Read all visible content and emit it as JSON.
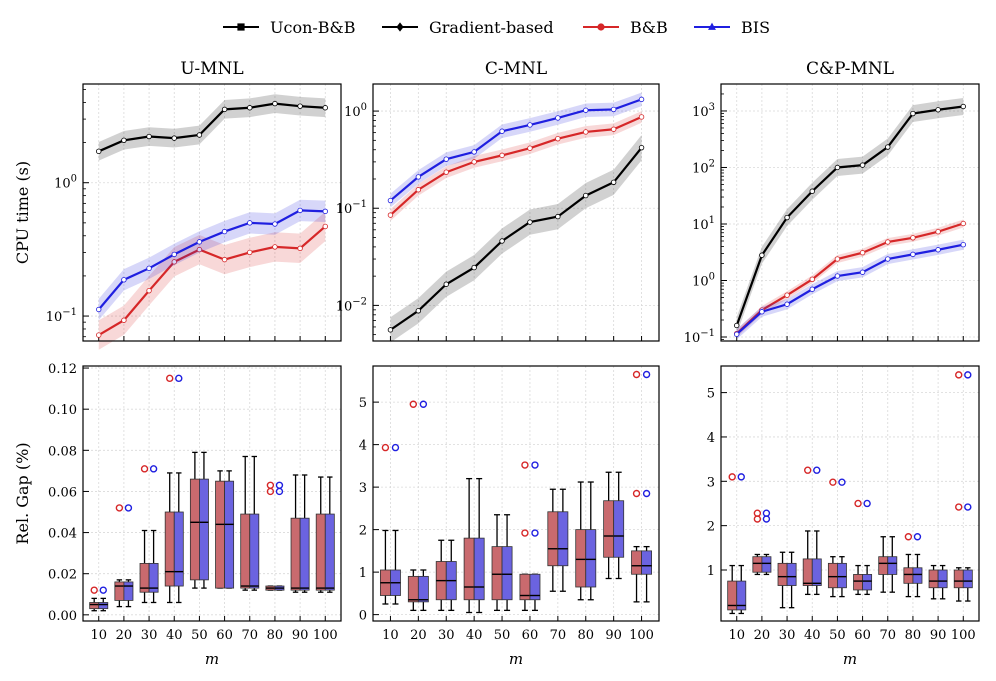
{
  "legend": {
    "position": "top-center",
    "items": [
      {
        "label": "Ucon-B&B",
        "color": "#000000",
        "marker": "square"
      },
      {
        "label": "Gradient-based",
        "color": "#000000",
        "marker": "diamond"
      },
      {
        "label": "B&B",
        "color": "#d62728",
        "marker": "circle"
      },
      {
        "label": "BIS",
        "color": "#1f1fe0",
        "marker": "triangle"
      }
    ]
  },
  "colors": {
    "black": "#000000",
    "bb_line": "#d62728",
    "bis_line": "#1f1fe0",
    "bb_box": "#c96a6e",
    "bis_box": "#6b63e0",
    "grid": "#d9d9d9"
  },
  "shared": {
    "xlabel": "m",
    "ylabel_top": "CPU time (s)",
    "ylabel_bottom": "Rel. Gap (%)",
    "m": [
      10,
      20,
      30,
      40,
      50,
      60,
      70,
      80,
      90,
      100
    ]
  },
  "chart_data": [
    {
      "type": "line",
      "title": "U-MNL",
      "yscale": "log",
      "ylim": [
        0.065,
        5.5
      ],
      "yticks": [
        {
          "v": 0.1,
          "label": "10^-1"
        },
        {
          "v": 1,
          "label": "10^0"
        }
      ],
      "x": [
        10,
        20,
        30,
        40,
        50,
        60,
        70,
        80,
        90,
        100
      ],
      "grid": true,
      "series": [
        {
          "name": "Ucon-B&B",
          "values": [
            1.72,
            2.08,
            2.22,
            2.16,
            2.28,
            3.55,
            3.65,
            3.92,
            3.75,
            3.65
          ],
          "band": 0.07
        },
        {
          "name": "B&B",
          "values": [
            0.072,
            0.093,
            0.155,
            0.255,
            0.315,
            0.265,
            0.3,
            0.33,
            0.322,
            0.47
          ],
          "band": 0.11
        },
        {
          "name": "BIS",
          "values": [
            0.112,
            0.187,
            0.228,
            0.29,
            0.36,
            0.43,
            0.5,
            0.49,
            0.62,
            0.61
          ],
          "band": 0.08
        }
      ]
    },
    {
      "type": "line",
      "title": "C-MNL",
      "yscale": "log",
      "ylim": [
        0.0043,
        1.9
      ],
      "yticks": [
        {
          "v": 0.01,
          "label": "10^-2"
        },
        {
          "v": 0.1,
          "label": "10^-1"
        },
        {
          "v": 1,
          "label": "10^0"
        }
      ],
      "x": [
        10,
        20,
        30,
        40,
        50,
        60,
        70,
        80,
        90,
        100
      ],
      "grid": true,
      "series": [
        {
          "name": "Gradient-based",
          "values": [
            0.0056,
            0.0088,
            0.0165,
            0.0245,
            0.046,
            0.072,
            0.082,
            0.135,
            0.185,
            0.42
          ],
          "band": 0.13
        },
        {
          "name": "B&B",
          "values": [
            0.085,
            0.155,
            0.235,
            0.3,
            0.35,
            0.415,
            0.52,
            0.61,
            0.65,
            0.87
          ],
          "band": 0.06
        },
        {
          "name": "BIS",
          "values": [
            0.12,
            0.21,
            0.32,
            0.38,
            0.62,
            0.72,
            0.85,
            1.02,
            1.04,
            1.32
          ],
          "band": 0.07
        }
      ]
    },
    {
      "type": "line",
      "title": "C&P-MNL",
      "yscale": "log",
      "ylim": [
        0.085,
        3000
      ],
      "yticks": [
        {
          "v": 0.1,
          "label": "10^-1"
        },
        {
          "v": 1,
          "label": "10^0"
        },
        {
          "v": 10,
          "label": "10^1"
        },
        {
          "v": 100,
          "label": "10^2"
        },
        {
          "v": 1000,
          "label": "10^3"
        }
      ],
      "x": [
        10,
        20,
        30,
        40,
        50,
        60,
        70,
        80,
        90,
        100
      ],
      "grid": true,
      "series": [
        {
          "name": "Ucon-B&B",
          "values": [
            0.16,
            2.8,
            13,
            38,
            100,
            110,
            230,
            900,
            1050,
            1200
          ],
          "band": 0.15
        },
        {
          "name": "B&B",
          "values": [
            0.115,
            0.3,
            0.55,
            1.05,
            2.4,
            3.1,
            4.8,
            5.7,
            7.3,
            10.2
          ],
          "band": 0.07
        },
        {
          "name": "BIS",
          "values": [
            0.112,
            0.28,
            0.38,
            0.7,
            1.2,
            1.4,
            2.4,
            2.9,
            3.5,
            4.3
          ],
          "band": 0.09
        }
      ]
    },
    {
      "type": "box",
      "title": "U-MNL",
      "ylim": [
        -0.003,
        0.121
      ],
      "yticks": [
        {
          "v": 0.0,
          "label": "0.00"
        },
        {
          "v": 0.02,
          "label": "0.02"
        },
        {
          "v": 0.04,
          "label": "0.04"
        },
        {
          "v": 0.06,
          "label": "0.06"
        },
        {
          "v": 0.08,
          "label": "0.08"
        },
        {
          "v": 0.1,
          "label": "0.10"
        },
        {
          "v": 0.12,
          "label": "0.12"
        }
      ],
      "x": [
        10,
        20,
        30,
        40,
        50,
        60,
        70,
        80,
        90,
        100
      ],
      "grid": true,
      "boxes": [
        {
          "lo": 0.002,
          "q1": 0.003,
          "med": 0.005,
          "q3": 0.006,
          "hi": 0.008,
          "out": [
            0.012
          ]
        },
        {
          "lo": 0.004,
          "q1": 0.007,
          "med": 0.014,
          "q3": 0.016,
          "hi": 0.017,
          "out": [
            0.052
          ]
        },
        {
          "lo": 0.006,
          "q1": 0.011,
          "med": 0.013,
          "q3": 0.025,
          "hi": 0.041,
          "out": [
            0.071
          ]
        },
        {
          "lo": 0.006,
          "q1": 0.014,
          "med": 0.021,
          "q3": 0.05,
          "hi": 0.069,
          "out": [
            0.115
          ]
        },
        {
          "lo": 0.013,
          "q1": 0.017,
          "med": 0.045,
          "q3": 0.066,
          "hi": 0.079,
          "out": []
        },
        {
          "lo": 0.013,
          "q1": 0.013,
          "med": 0.044,
          "q3": 0.065,
          "hi": 0.07,
          "out": []
        },
        {
          "lo": 0.012,
          "q1": 0.013,
          "med": 0.014,
          "q3": 0.049,
          "hi": 0.077,
          "out": []
        },
        {
          "lo": 0.012,
          "q1": 0.012,
          "med": 0.013,
          "q3": 0.014,
          "hi": 0.014,
          "out": [
            0.06,
            0.063
          ]
        },
        {
          "lo": 0.011,
          "q1": 0.012,
          "med": 0.013,
          "q3": 0.047,
          "hi": 0.068,
          "out": []
        },
        {
          "lo": 0.011,
          "q1": 0.012,
          "med": 0.013,
          "q3": 0.049,
          "hi": 0.067,
          "out": []
        }
      ]
    },
    {
      "type": "box",
      "title": "C-MNL",
      "ylim": [
        -0.15,
        5.85
      ],
      "yticks": [
        {
          "v": 0,
          "label": "0"
        },
        {
          "v": 1,
          "label": "1"
        },
        {
          "v": 2,
          "label": "2"
        },
        {
          "v": 3,
          "label": "3"
        },
        {
          "v": 4,
          "label": "4"
        },
        {
          "v": 5,
          "label": "5"
        }
      ],
      "x": [
        10,
        20,
        30,
        40,
        50,
        60,
        70,
        80,
        90,
        100
      ],
      "grid": true,
      "boxes": [
        {
          "lo": 0.25,
          "q1": 0.45,
          "med": 0.75,
          "q3": 1.05,
          "hi": 1.98,
          "out": [
            3.93
          ]
        },
        {
          "lo": 0.1,
          "q1": 0.3,
          "med": 0.35,
          "q3": 0.9,
          "hi": 1.05,
          "out": [
            4.95
          ]
        },
        {
          "lo": 0.1,
          "q1": 0.35,
          "med": 0.8,
          "q3": 1.25,
          "hi": 1.75,
          "out": []
        },
        {
          "lo": 0.05,
          "q1": 0.35,
          "med": 0.65,
          "q3": 1.8,
          "hi": 3.2,
          "out": []
        },
        {
          "lo": 0.1,
          "q1": 0.35,
          "med": 0.95,
          "q3": 1.6,
          "hi": 2.35,
          "out": []
        },
        {
          "lo": 0.1,
          "q1": 0.35,
          "med": 0.45,
          "q3": 0.95,
          "hi": 0.95,
          "out": [
            1.92,
            3.52
          ]
        },
        {
          "lo": 0.55,
          "q1": 1.15,
          "med": 1.55,
          "q3": 2.42,
          "hi": 2.95,
          "out": []
        },
        {
          "lo": 0.35,
          "q1": 0.65,
          "med": 1.3,
          "q3": 2.0,
          "hi": 3.12,
          "out": []
        },
        {
          "lo": 0.85,
          "q1": 1.35,
          "med": 1.85,
          "q3": 2.68,
          "hi": 3.35,
          "out": []
        },
        {
          "lo": 0.3,
          "q1": 0.95,
          "med": 1.15,
          "q3": 1.5,
          "hi": 1.6,
          "out": [
            2.85,
            5.65
          ]
        }
      ]
    },
    {
      "type": "box",
      "title": "C&P-MNL",
      "ylim": [
        -0.15,
        5.6
      ],
      "yticks": [
        {
          "v": 1,
          "label": "1"
        },
        {
          "v": 2,
          "label": "2"
        },
        {
          "v": 3,
          "label": "3"
        },
        {
          "v": 4,
          "label": "4"
        },
        {
          "v": 5,
          "label": "5"
        }
      ],
      "x": [
        10,
        20,
        30,
        40,
        50,
        60,
        70,
        80,
        90,
        100
      ],
      "grid": true,
      "boxes": [
        {
          "lo": 0.02,
          "q1": 0.1,
          "med": 0.2,
          "q3": 0.75,
          "hi": 1.1,
          "out": [
            3.1
          ]
        },
        {
          "lo": 0.9,
          "q1": 0.95,
          "med": 1.15,
          "q3": 1.3,
          "hi": 1.35,
          "out": [
            2.15,
            2.28
          ]
        },
        {
          "lo": 0.15,
          "q1": 0.65,
          "med": 0.85,
          "q3": 1.15,
          "hi": 1.4,
          "out": []
        },
        {
          "lo": 0.45,
          "q1": 0.65,
          "med": 0.7,
          "q3": 1.25,
          "hi": 1.88,
          "out": [
            3.25
          ]
        },
        {
          "lo": 0.4,
          "q1": 0.6,
          "med": 0.85,
          "q3": 1.15,
          "hi": 1.3,
          "out": [
            2.98
          ]
        },
        {
          "lo": 0.45,
          "q1": 0.55,
          "med": 0.75,
          "q3": 0.9,
          "hi": 1.1,
          "out": [
            2.5
          ]
        },
        {
          "lo": 0.5,
          "q1": 0.9,
          "med": 1.15,
          "q3": 1.3,
          "hi": 1.75,
          "out": []
        },
        {
          "lo": 0.4,
          "q1": 0.7,
          "med": 0.9,
          "q3": 1.05,
          "hi": 1.35,
          "out": [
            1.75
          ]
        },
        {
          "lo": 0.35,
          "q1": 0.6,
          "med": 0.75,
          "q3": 1.0,
          "hi": 1.1,
          "out": []
        },
        {
          "lo": 0.3,
          "q1": 0.6,
          "med": 0.75,
          "q3": 1.0,
          "hi": 1.05,
          "out": [
            2.42,
            5.4
          ]
        }
      ]
    }
  ]
}
